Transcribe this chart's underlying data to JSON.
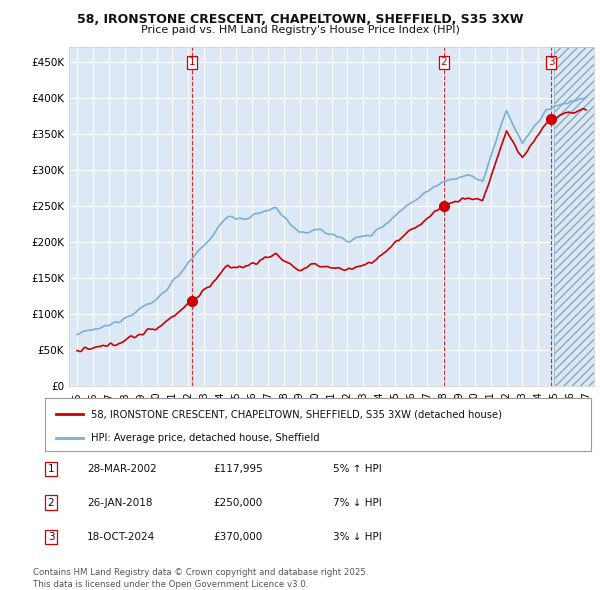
{
  "title_line1": "58, IRONSTONE CRESCENT, CHAPELTOWN, SHEFFIELD, S35 3XW",
  "title_line2": "Price paid vs. HM Land Registry's House Price Index (HPI)",
  "background_color": "#ffffff",
  "plot_bg_color": "#dce8f5",
  "grid_color": "#ffffff",
  "hpi_color": "#7bafd4",
  "price_color": "#cc0000",
  "annotation_line_color": "#cc0000",
  "ylim": [
    0,
    470000
  ],
  "yticks": [
    0,
    50000,
    100000,
    150000,
    200000,
    250000,
    300000,
    350000,
    400000,
    450000
  ],
  "ytick_labels": [
    "£0",
    "£50K",
    "£100K",
    "£150K",
    "£200K",
    "£250K",
    "£300K",
    "£350K",
    "£400K",
    "£450K"
  ],
  "xlim_start": 1994.5,
  "xlim_end": 2027.5,
  "xticks": [
    1995,
    1996,
    1997,
    1998,
    1999,
    2000,
    2001,
    2002,
    2003,
    2004,
    2005,
    2006,
    2007,
    2008,
    2009,
    2010,
    2011,
    2012,
    2013,
    2014,
    2015,
    2016,
    2017,
    2018,
    2019,
    2020,
    2021,
    2022,
    2023,
    2024,
    2025,
    2026,
    2027
  ],
  "sale1_year": 2002.23,
  "sale1_price": 117995,
  "sale2_year": 2018.07,
  "sale2_price": 250000,
  "sale3_year": 2024.8,
  "sale3_price": 370000,
  "hatch_start": 2025.0,
  "legend_label_red": "58, IRONSTONE CRESCENT, CHAPELTOWN, SHEFFIELD, S35 3XW (detached house)",
  "legend_label_blue": "HPI: Average price, detached house, Sheffield",
  "table_rows": [
    {
      "num": "1",
      "date": "28-MAR-2002",
      "price": "£117,995",
      "hpi": "5% ↑ HPI"
    },
    {
      "num": "2",
      "date": "26-JAN-2018",
      "price": "£250,000",
      "hpi": "7% ↓ HPI"
    },
    {
      "num": "3",
      "date": "18-OCT-2024",
      "price": "£370,000",
      "hpi": "3% ↓ HPI"
    }
  ],
  "footer": "Contains HM Land Registry data © Crown copyright and database right 2025.\nThis data is licensed under the Open Government Licence v3.0."
}
